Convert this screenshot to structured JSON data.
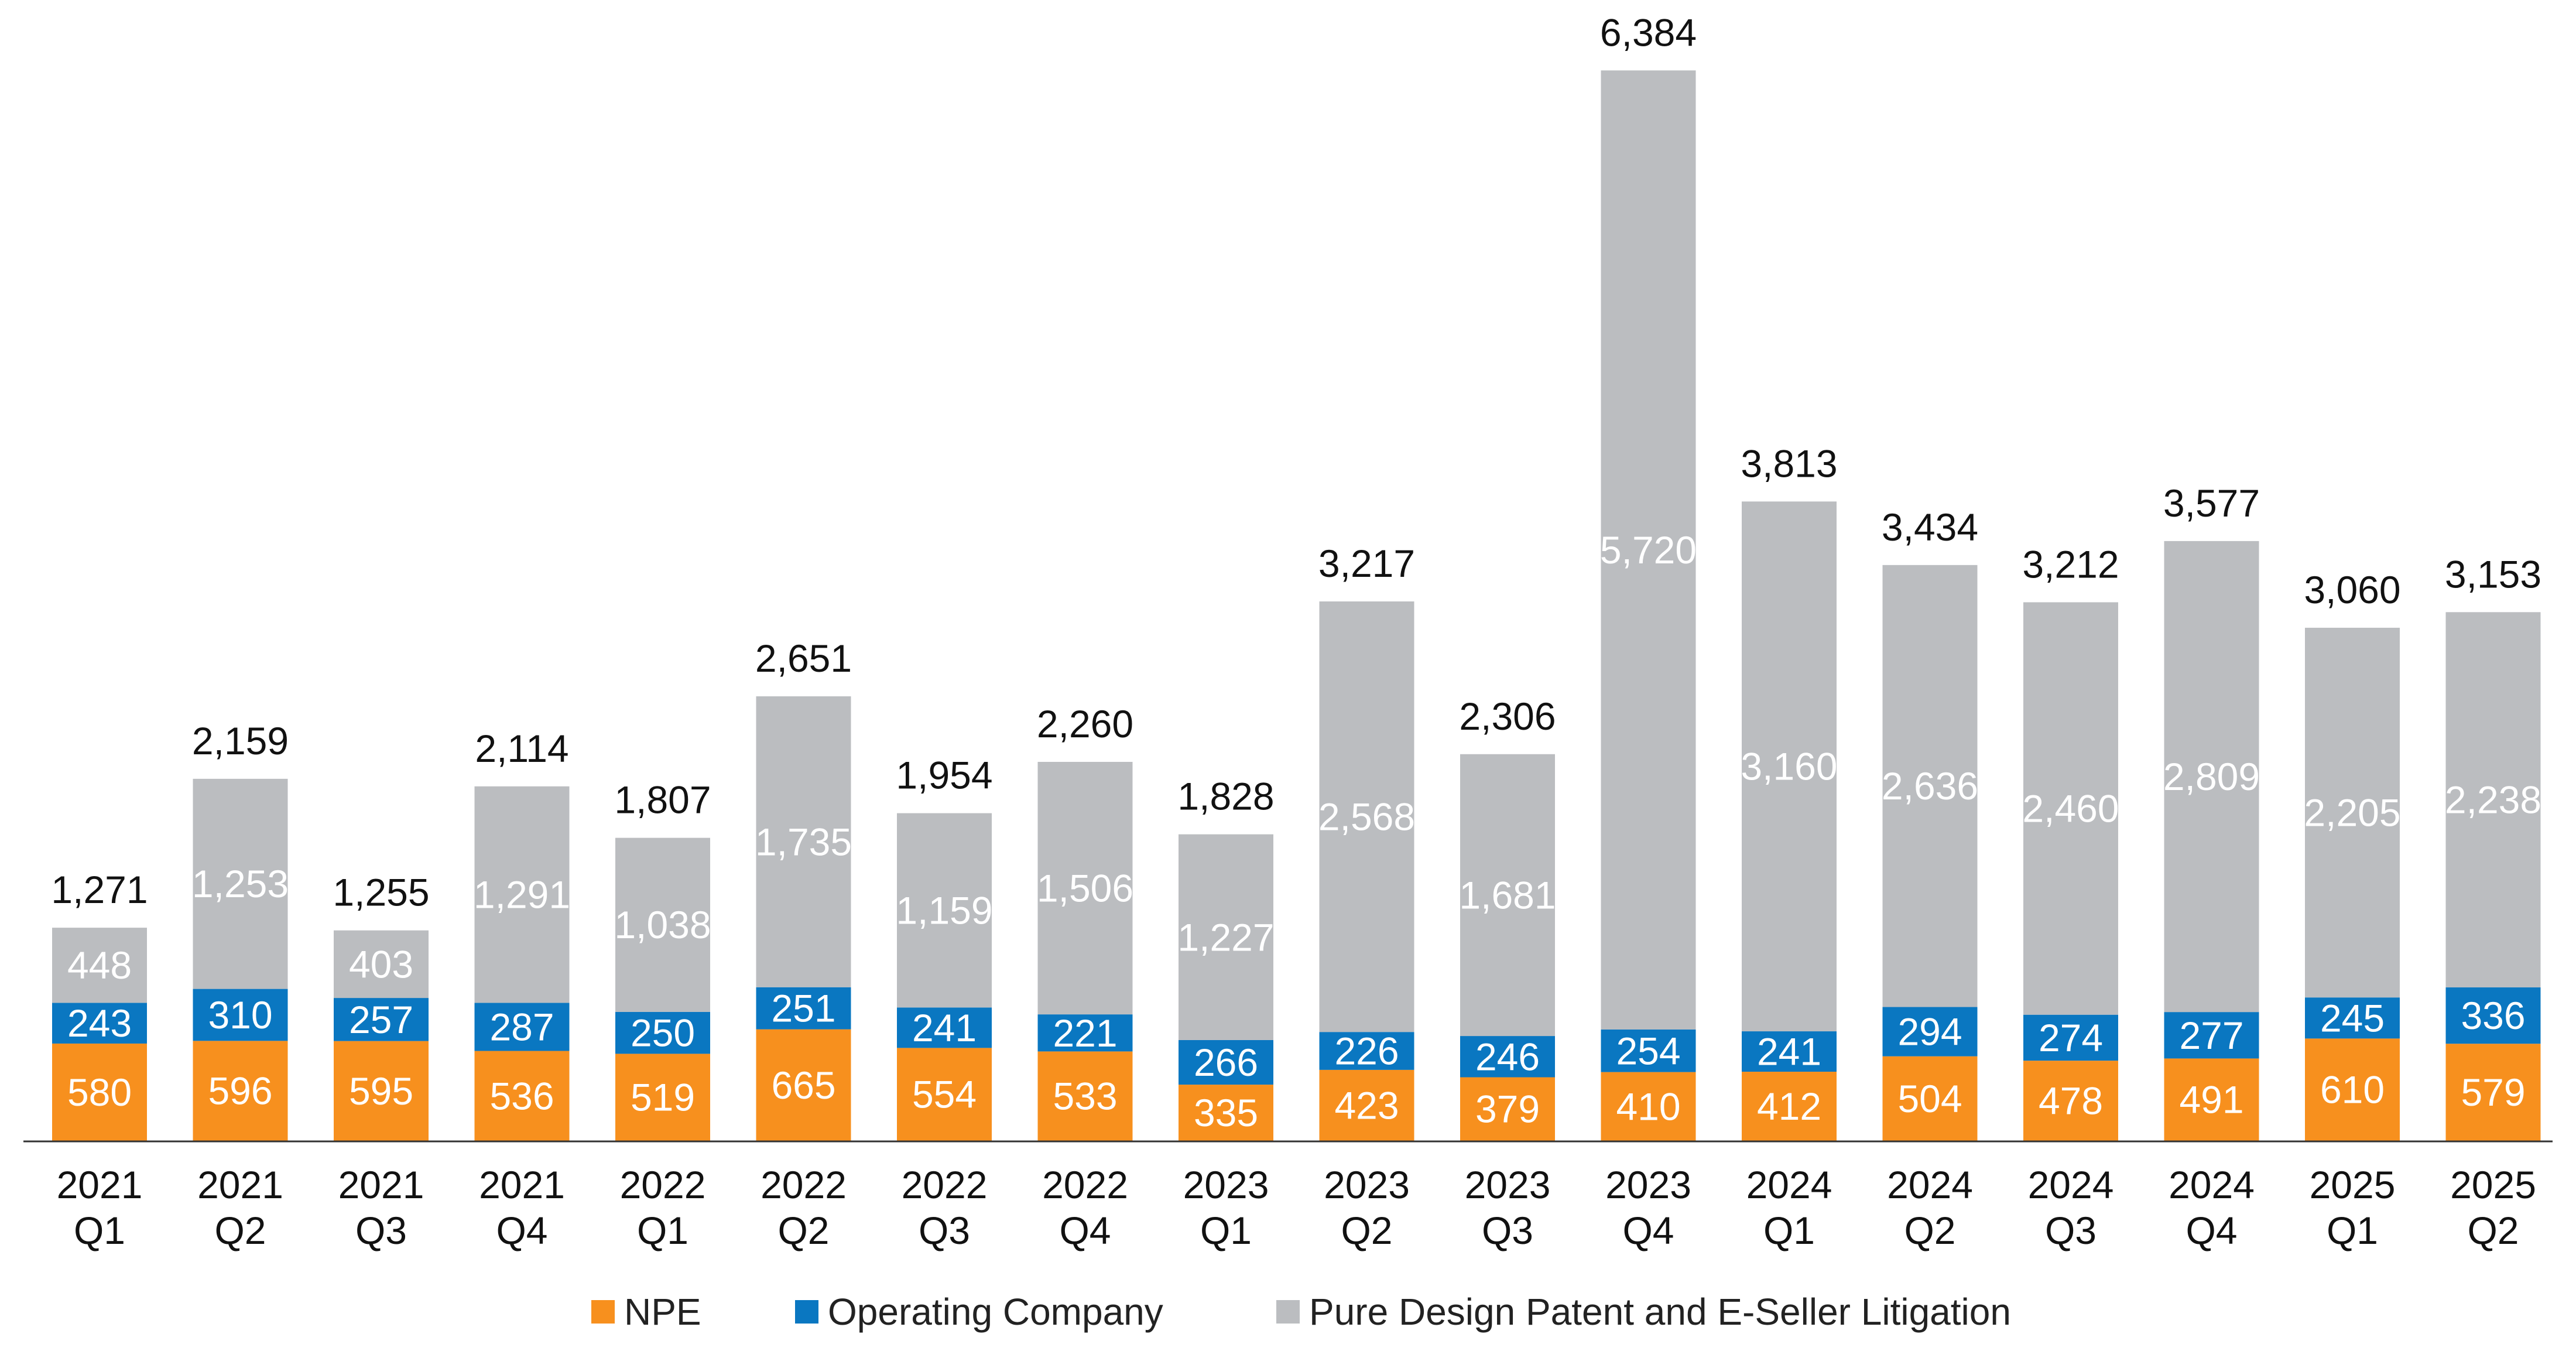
{
  "chart_data": {
    "type": "bar",
    "stacked": true,
    "title": "",
    "xlabel": "",
    "ylabel": "",
    "ylim": [
      0,
      6500
    ],
    "grid": false,
    "legend_position": "bottom",
    "categories": [
      [
        "2021",
        "Q1"
      ],
      [
        "2021",
        "Q2"
      ],
      [
        "2021",
        "Q3"
      ],
      [
        "2021",
        "Q4"
      ],
      [
        "2022",
        "Q1"
      ],
      [
        "2022",
        "Q2"
      ],
      [
        "2022",
        "Q3"
      ],
      [
        "2022",
        "Q4"
      ],
      [
        "2023",
        "Q1"
      ],
      [
        "2023",
        "Q2"
      ],
      [
        "2023",
        "Q3"
      ],
      [
        "2023",
        "Q4"
      ],
      [
        "2024",
        "Q1"
      ],
      [
        "2024",
        "Q2"
      ],
      [
        "2024",
        "Q3"
      ],
      [
        "2024",
        "Q4"
      ],
      [
        "2025",
        "Q1"
      ],
      [
        "2025",
        "Q2"
      ]
    ],
    "series": [
      {
        "name": "NPE",
        "color": "#F7901E",
        "label_color": "#ffffff",
        "values": [
          580,
          596,
          595,
          536,
          519,
          665,
          554,
          533,
          335,
          423,
          379,
          410,
          412,
          504,
          478,
          491,
          610,
          579
        ]
      },
      {
        "name": "Operating Company",
        "color": "#0A77C1",
        "label_color": "#ffffff",
        "values": [
          243,
          310,
          257,
          287,
          250,
          251,
          241,
          221,
          266,
          226,
          246,
          254,
          241,
          294,
          274,
          277,
          245,
          336
        ]
      },
      {
        "name": "Pure Design Patent and E-Seller Litigation",
        "color": "#BBBDC0",
        "label_color": "#ffffff",
        "values": [
          448,
          1253,
          403,
          1291,
          1038,
          1735,
          1159,
          1506,
          1227,
          2568,
          1681,
          5720,
          3160,
          2636,
          2460,
          2809,
          2205,
          2238
        ]
      }
    ],
    "totals": [
      1271,
      2159,
      1255,
      2114,
      1807,
      2651,
      1954,
      2260,
      1828,
      3217,
      2306,
      6384,
      3813,
      3434,
      3212,
      3577,
      3060,
      3153
    ]
  }
}
